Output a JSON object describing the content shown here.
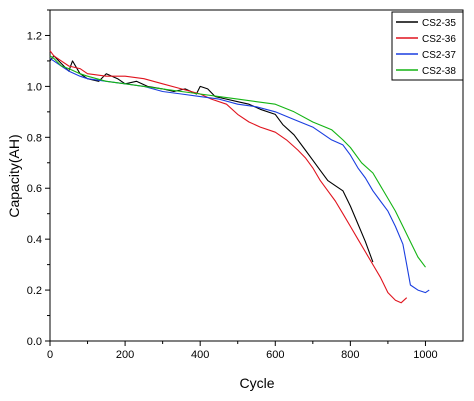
{
  "chart_data": {
    "type": "line",
    "xlabel": "Cycle",
    "ylabel": "Capacity(AH)",
    "xlim": [
      0,
      1100
    ],
    "ylim": [
      0.0,
      1.3
    ],
    "x_ticks": [
      0,
      200,
      400,
      600,
      800,
      1000
    ],
    "y_ticks": [
      0.0,
      0.2,
      0.4,
      0.6,
      0.8,
      1.0,
      1.2
    ],
    "x_tick_labels": [
      "0",
      "200",
      "400",
      "600",
      "800",
      "1000"
    ],
    "y_tick_labels": [
      "0.0",
      "0.2",
      "0.4",
      "0.6",
      "0.8",
      "1.0",
      "1.2"
    ],
    "grid": false,
    "legend_position": "top-right",
    "series": [
      {
        "name": "CS2-35",
        "color": "#000000",
        "x": [
          0,
          10,
          30,
          50,
          60,
          80,
          100,
          130,
          150,
          180,
          200,
          230,
          260,
          300,
          330,
          360,
          390,
          400,
          420,
          440,
          470,
          500,
          530,
          560,
          600,
          620,
          650,
          680,
          700,
          720,
          740,
          760,
          780,
          800,
          820,
          840,
          860
        ],
        "y": [
          1.1,
          1.12,
          1.09,
          1.06,
          1.1,
          1.05,
          1.03,
          1.02,
          1.05,
          1.03,
          1.01,
          1.02,
          1.0,
          0.99,
          0.98,
          0.99,
          0.97,
          1.0,
          0.99,
          0.96,
          0.95,
          0.94,
          0.93,
          0.91,
          0.89,
          0.85,
          0.81,
          0.75,
          0.71,
          0.67,
          0.63,
          0.61,
          0.59,
          0.53,
          0.46,
          0.39,
          0.31
        ]
      },
      {
        "name": "CS2-36",
        "color": "#e0141e",
        "x": [
          0,
          10,
          30,
          50,
          80,
          100,
          150,
          200,
          250,
          300,
          350,
          400,
          430,
          470,
          500,
          530,
          560,
          600,
          630,
          660,
          680,
          700,
          720,
          740,
          760,
          780,
          800,
          820,
          840,
          860,
          880,
          900,
          920,
          935,
          950
        ],
        "y": [
          1.14,
          1.12,
          1.1,
          1.08,
          1.07,
          1.05,
          1.04,
          1.04,
          1.03,
          1.01,
          0.99,
          0.97,
          0.95,
          0.93,
          0.89,
          0.86,
          0.84,
          0.82,
          0.79,
          0.75,
          0.72,
          0.68,
          0.63,
          0.59,
          0.55,
          0.5,
          0.45,
          0.4,
          0.35,
          0.3,
          0.25,
          0.19,
          0.16,
          0.15,
          0.17
        ]
      },
      {
        "name": "CS2-37",
        "color": "#1a3ee0",
        "x": [
          0,
          10,
          30,
          50,
          80,
          100,
          150,
          200,
          250,
          300,
          350,
          400,
          450,
          500,
          550,
          600,
          650,
          700,
          720,
          750,
          780,
          800,
          820,
          840,
          860,
          880,
          900,
          920,
          940,
          950,
          960,
          980,
          1000,
          1010
        ],
        "y": [
          1.11,
          1.1,
          1.08,
          1.06,
          1.04,
          1.03,
          1.02,
          1.01,
          1.0,
          0.98,
          0.97,
          0.96,
          0.95,
          0.93,
          0.92,
          0.9,
          0.87,
          0.84,
          0.82,
          0.79,
          0.77,
          0.73,
          0.68,
          0.64,
          0.59,
          0.55,
          0.51,
          0.45,
          0.38,
          0.3,
          0.22,
          0.2,
          0.19,
          0.2
        ]
      },
      {
        "name": "CS2-38",
        "color": "#14b414",
        "x": [
          0,
          10,
          30,
          50,
          80,
          100,
          150,
          200,
          250,
          300,
          350,
          400,
          450,
          500,
          550,
          600,
          650,
          700,
          750,
          780,
          800,
          830,
          860,
          880,
          900,
          920,
          940,
          960,
          980,
          1000
        ],
        "y": [
          1.12,
          1.11,
          1.08,
          1.07,
          1.05,
          1.04,
          1.02,
          1.01,
          1.0,
          0.99,
          0.98,
          0.97,
          0.96,
          0.95,
          0.94,
          0.93,
          0.9,
          0.86,
          0.83,
          0.79,
          0.76,
          0.7,
          0.66,
          0.61,
          0.56,
          0.51,
          0.45,
          0.39,
          0.33,
          0.29
        ]
      }
    ]
  }
}
